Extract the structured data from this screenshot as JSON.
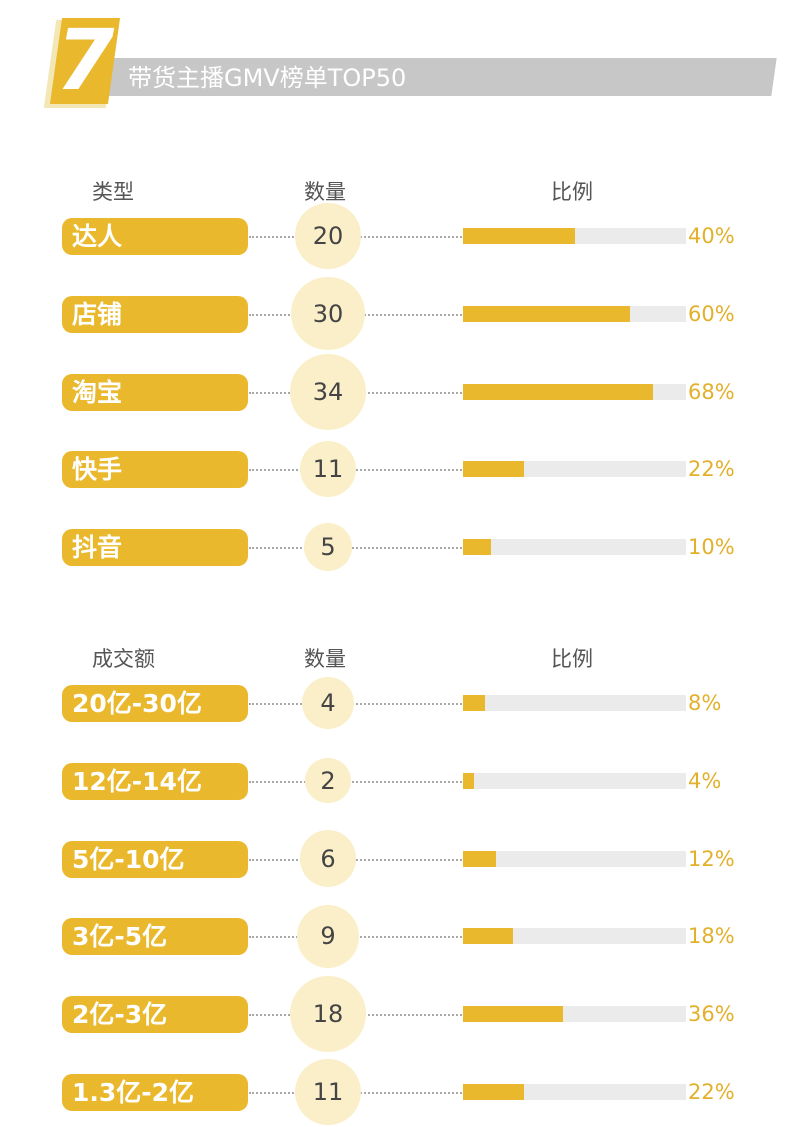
{
  "header": {
    "number": "7",
    "title": "带货主播GMV榜单TOP50"
  },
  "colors": {
    "accent": "#e9b82c",
    "circle": "#faefc8",
    "bar_track": "#ebebeb",
    "header_band": "#c7c7c7"
  },
  "chart_data": [
    {
      "type": "bar",
      "columns": [
        "类型",
        "数量",
        "比例"
      ],
      "categories": [
        "达人",
        "店铺",
        "淘宝",
        "快手",
        "抖音"
      ],
      "counts": [
        20,
        30,
        34,
        11,
        5
      ],
      "percent_labels": [
        "40%",
        "60%",
        "68%",
        "22%",
        "10%"
      ],
      "values": [
        40,
        60,
        68,
        22,
        10
      ],
      "xlim": [
        0,
        80
      ]
    },
    {
      "type": "bar",
      "columns": [
        "成交额",
        "数量",
        "比例"
      ],
      "categories": [
        "20亿-30亿",
        "12亿-14亿",
        "5亿-10亿",
        "3亿-5亿",
        "2亿-3亿",
        "1.3亿-2亿"
      ],
      "counts": [
        4,
        2,
        6,
        9,
        18,
        11
      ],
      "percent_labels": [
        "8%",
        "4%",
        "12%",
        "18%",
        "36%",
        "22%"
      ],
      "values": [
        8,
        4,
        12,
        18,
        36,
        22
      ],
      "xlim": [
        0,
        80
      ]
    }
  ]
}
